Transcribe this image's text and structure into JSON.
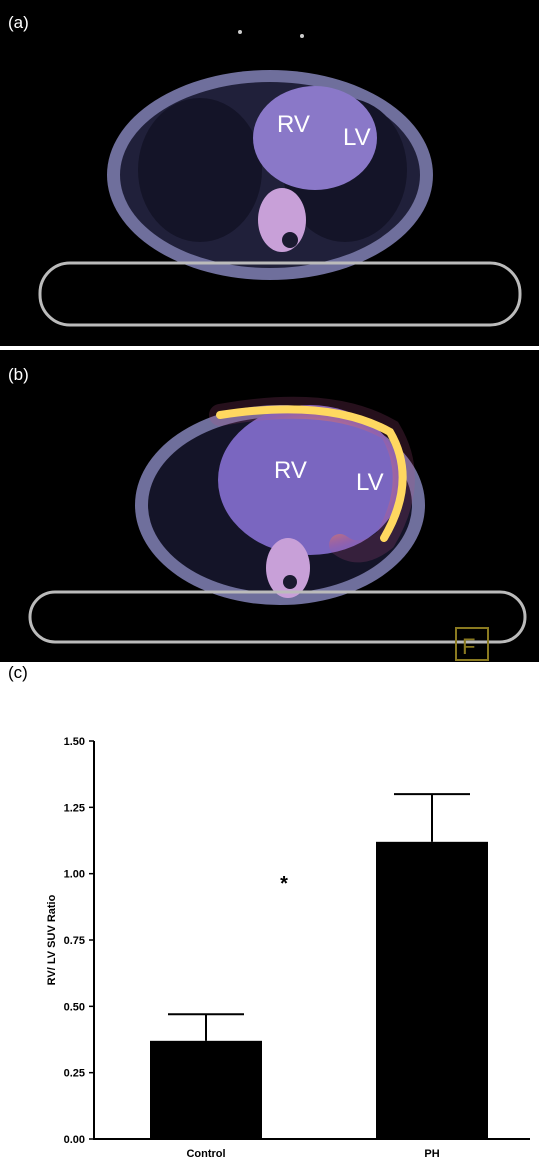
{
  "images": [
    {
      "label": "(a)",
      "annotations": [
        "RV",
        "LV"
      ]
    },
    {
      "label": "(b)",
      "annotations": [
        "RV",
        "LV"
      ],
      "marker": "F"
    }
  ],
  "chart_data": {
    "type": "bar",
    "label": "(c)",
    "ylabel": "RV/ LV SUV Ratio",
    "categories": [
      "Control",
      "PH"
    ],
    "values": [
      0.37,
      1.12
    ],
    "errors": [
      0.1,
      0.18
    ],
    "color": "#000000",
    "annotation": "*",
    "ylim": [
      0,
      1.5
    ],
    "yticks": [
      {
        "value": 0,
        "label": "0.00"
      },
      {
        "value": 0.25,
        "label": "0.25"
      },
      {
        "value": 0.5,
        "label": "0.50"
      },
      {
        "value": 0.75,
        "label": "0.75"
      },
      {
        "value": 1,
        "label": "1.00"
      },
      {
        "value": 1.25,
        "label": "1.25"
      },
      {
        "value": 1.5,
        "label": "1.50"
      }
    ]
  }
}
